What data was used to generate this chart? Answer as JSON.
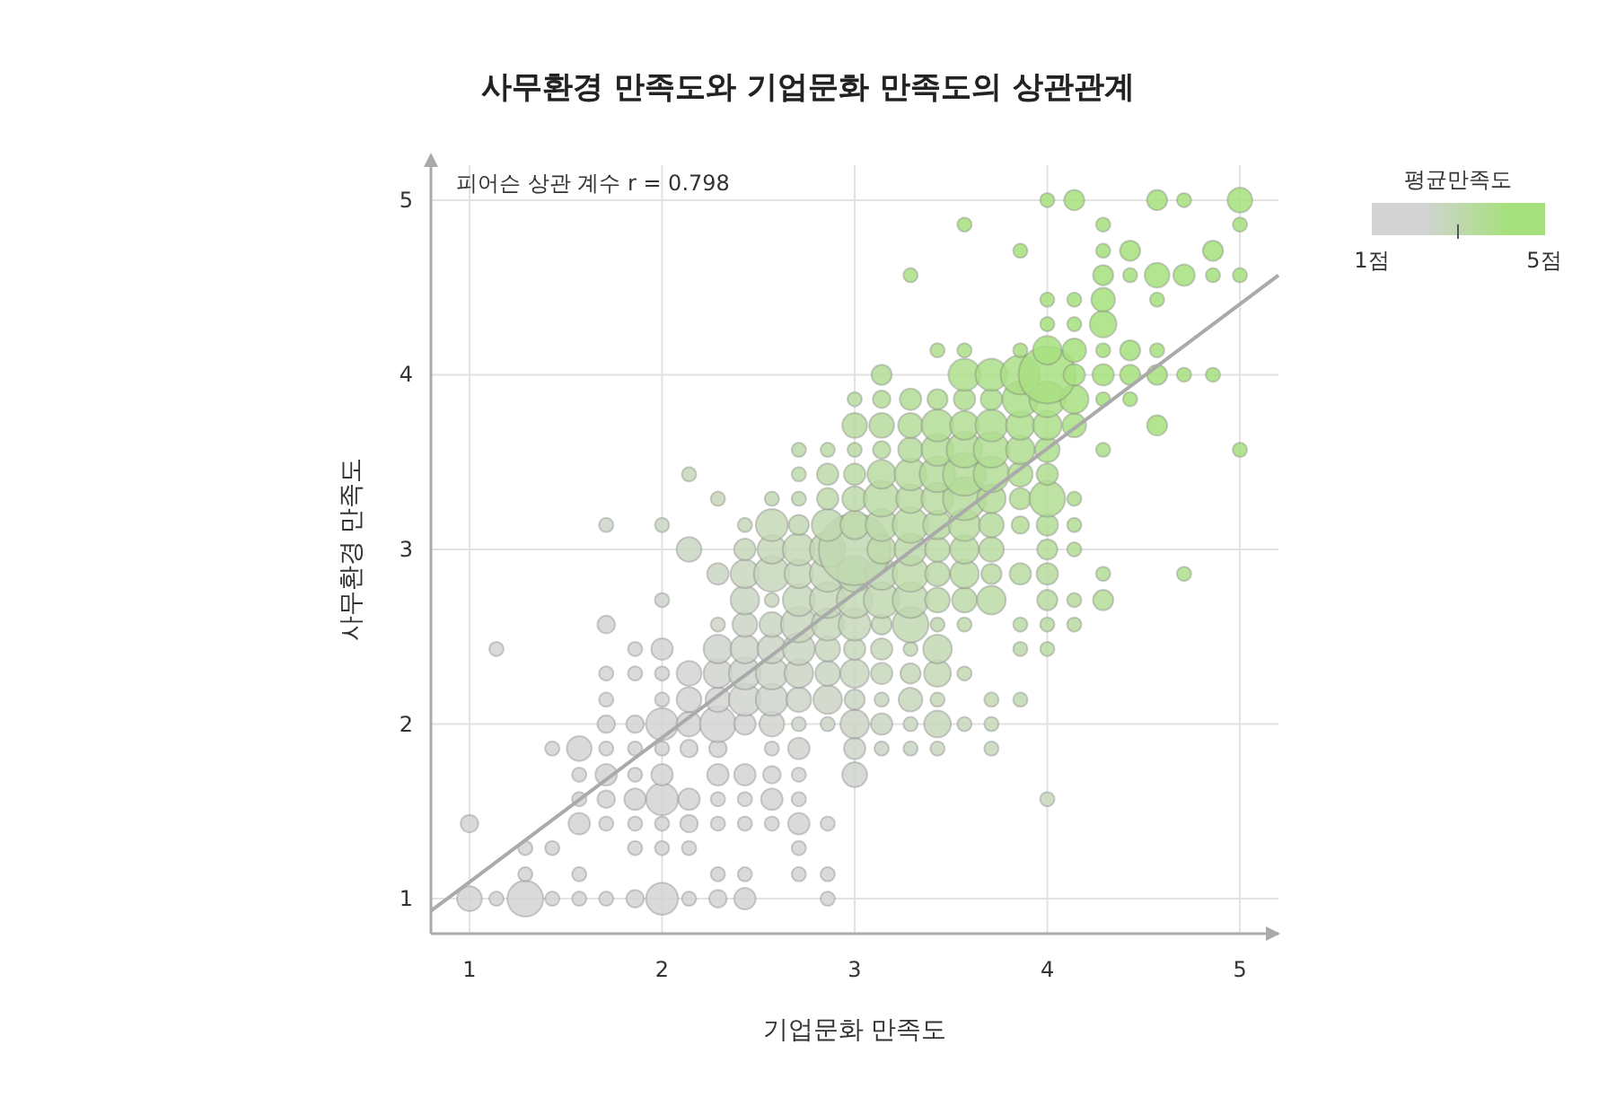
{
  "chart_data": {
    "type": "bubble",
    "title": "사무환경 만족도와 기업문화 만족도의 상관관계",
    "xlabel": "기업문화 만족도",
    "ylabel": "사무환경 만족도",
    "clabel": "평균만족도",
    "annotations": [
      "피어슨 상관 계수 r = 0.798"
    ],
    "xlim": [
      0.8,
      5.2
    ],
    "ylim": [
      0.8,
      5.2
    ],
    "xticks": [
      1,
      2,
      3,
      4,
      5
    ],
    "yticks": [
      1,
      2,
      3,
      4,
      5
    ],
    "grid": true,
    "clim": [
      1,
      5
    ],
    "cticks": [
      {
        "value": 1,
        "label": "1점"
      },
      {
        "value": 3,
        "label": null
      },
      {
        "value": 5,
        "label": "5점"
      }
    ],
    "series": [
      {
        "x": [
          1,
          1.14,
          1.29,
          1.43,
          1.57,
          1.71,
          1.86,
          2,
          2.14,
          2.29,
          2.43,
          2.86
        ],
        "values": [
          1,
          1,
          1,
          1,
          1,
          1,
          1,
          1,
          1,
          1,
          1,
          1
        ],
        "sizes": [
          0.12,
          0.04,
          0.25,
          0.04,
          0.04,
          0.04,
          0.06,
          0.2,
          0.04,
          0.06,
          0.09,
          0.04
        ],
        "colors": [
          "#d3d3d3",
          "#d3d3d3",
          "#d3d3d3",
          "#d3d3d3",
          "#d3d3d3",
          "#d3d3d3",
          "#d3d3d3",
          "#d3d3d3",
          "#d3d3d3",
          "#d3d3d3",
          "#d3d3d3",
          "#d3d3d3"
        ]
      },
      {
        "x": [
          1.29,
          1.57,
          2.29,
          2.43,
          2.71,
          2.86
        ],
        "values": [
          1.14,
          1.14,
          1.14,
          1.14,
          1.14,
          1.14
        ],
        "sizes": [
          0.04,
          0.04,
          0.04,
          0.04,
          0.04,
          0.04
        ],
        "colors": [
          "#d3d3d3",
          "#d3d3d3",
          "#d3d3d3",
          "#d3d3d3",
          "#d3d3d3",
          "#d3d3d3"
        ]
      },
      {
        "x": [
          1.29,
          1.43,
          1.86,
          2,
          2.14,
          2.71
        ],
        "values": [
          1.29,
          1.29,
          1.29,
          1.29,
          1.29,
          1.29
        ],
        "sizes": [
          0.04,
          0.04,
          0.04,
          0.04,
          0.04,
          0.04
        ],
        "colors": [
          "#d3d3d3",
          "#d3d3d3",
          "#d3d3d3",
          "#d3d3d3",
          "#d3d3d3",
          "#d3d3d3"
        ]
      },
      {
        "x": [
          1,
          1.57,
          1.71,
          1.86,
          2,
          2.14,
          2.29,
          2.43,
          2.57,
          2.71,
          2.86
        ],
        "values": [
          1.43,
          1.43,
          1.43,
          1.43,
          1.43,
          1.43,
          1.43,
          1.43,
          1.43,
          1.43,
          1.43
        ],
        "sizes": [
          0.06,
          0.09,
          0.04,
          0.04,
          0.04,
          0.06,
          0.04,
          0.04,
          0.04,
          0.09,
          0.04
        ],
        "colors": [
          "#d3d3d3",
          "#d3d3d3",
          "#d3d3d3",
          "#d3d3d3",
          "#d3d3d3",
          "#d3d3d3",
          "#d3d3d3",
          "#d3d3d3",
          "#d3d3d3",
          "#d3d3d3",
          "#d3d3d3"
        ]
      },
      {
        "x": [
          1.57,
          1.71,
          1.86,
          2,
          2.14,
          2.29,
          2.43,
          2.57,
          2.71,
          4
        ],
        "values": [
          1.57,
          1.57,
          1.57,
          1.57,
          1.57,
          1.57,
          1.57,
          1.57,
          1.57,
          1.57
        ],
        "sizes": [
          0.04,
          0.06,
          0.09,
          0.2,
          0.09,
          0.04,
          0.04,
          0.09,
          0.04,
          0.04
        ],
        "colors": [
          "#d3d3d3",
          "#d3d3d3",
          "#d3d3d3",
          "#d3d3d3",
          "#d3d3d3",
          "#d3d3d3",
          "#d3d3d3",
          "#d3d3d3",
          "#d3d3d3",
          "#c5d7b9"
        ]
      },
      {
        "x": [
          1.57,
          1.71,
          1.86,
          2,
          2.29,
          2.43,
          2.57,
          2.71,
          3
        ],
        "values": [
          1.71,
          1.71,
          1.71,
          1.71,
          1.71,
          1.71,
          1.71,
          1.71,
          1.71
        ],
        "sizes": [
          0.04,
          0.09,
          0.04,
          0.09,
          0.09,
          0.09,
          0.06,
          0.04,
          0.12
        ],
        "colors": [
          "#d3d3d3",
          "#d3d3d3",
          "#d3d3d3",
          "#d3d3d3",
          "#d3d3d3",
          "#d3d3d3",
          "#d3d3d3",
          "#d3d3d2",
          "#cfd4cc"
        ]
      },
      {
        "x": [
          1.43,
          1.57,
          1.71,
          1.86,
          2,
          2.14,
          2.29,
          2.57,
          2.71,
          3,
          3.14,
          3.29,
          3.43,
          3.71
        ],
        "values": [
          1.86,
          1.86,
          1.86,
          1.86,
          1.86,
          1.86,
          1.86,
          1.86,
          1.86,
          1.86,
          1.86,
          1.86,
          1.86,
          1.86
        ],
        "sizes": [
          0.04,
          0.12,
          0.04,
          0.04,
          0.04,
          0.06,
          0.06,
          0.04,
          0.09,
          0.09,
          0.04,
          0.04,
          0.04,
          0.04
        ],
        "colors": [
          "#d3d3d3",
          "#d3d3d3",
          "#d3d3d3",
          "#d3d3d3",
          "#d3d3d3",
          "#d3d3d3",
          "#d3d3d3",
          "#d3d3d2",
          "#d1d4cf",
          "#ced5c9",
          "#ccd5c6",
          "#cad6c3",
          "#c9d6bf",
          "#c5d7b9"
        ]
      },
      {
        "x": [
          1.71,
          1.86,
          2,
          2.14,
          2.29,
          2.43,
          2.57,
          2.71,
          2.86,
          3,
          3.14,
          3.29,
          3.43,
          3.57,
          3.71
        ],
        "values": [
          2,
          2,
          2,
          2,
          2,
          2,
          2,
          2,
          2,
          2,
          2,
          2,
          2,
          2,
          2
        ],
        "sizes": [
          0.06,
          0.06,
          0.2,
          0.12,
          0.25,
          0.09,
          0.12,
          0.04,
          0.04,
          0.16,
          0.09,
          0.04,
          0.14,
          0.04,
          0.04
        ],
        "colors": [
          "#d3d3d3",
          "#d3d3d3",
          "#d3d3d3",
          "#d3d3d3",
          "#d3d3d3",
          "#d3d3d2",
          "#d1d4cf",
          "#cfd4cc",
          "#ced5c9",
          "#ccd5c6",
          "#cad6c3",
          "#c9d6bf",
          "#c7d7bc",
          "#c5d7b9",
          "#c4d8b6"
        ]
      },
      {
        "x": [
          1.71,
          2,
          2.14,
          2.29,
          2.43,
          2.57,
          2.71,
          2.86,
          3,
          3.14,
          3.29,
          3.43,
          3.71,
          3.86
        ],
        "values": [
          2.14,
          2.14,
          2.14,
          2.14,
          2.14,
          2.14,
          2.14,
          2.14,
          2.14,
          2.14,
          2.14,
          2.14,
          2.14,
          2.14
        ],
        "sizes": [
          0.04,
          0.04,
          0.12,
          0.12,
          0.2,
          0.2,
          0.12,
          0.16,
          0.08,
          0.04,
          0.11,
          0.04,
          0.04,
          0.04
        ],
        "colors": [
          "#d3d3d3",
          "#d3d3d3",
          "#d3d3d3",
          "#d3d3d2",
          "#d1d4cf",
          "#cfd4cc",
          "#ced5c9",
          "#ccd5c6",
          "#cad6c3",
          "#c9d6bf",
          "#c7d7bc",
          "#c5d7b9",
          "#c2d8b3",
          "#c0d8b0"
        ]
      },
      {
        "x": [
          1.71,
          1.86,
          2,
          2.14,
          2.29,
          2.43,
          2.57,
          2.71,
          2.86,
          3,
          3.14,
          3.29,
          3.43,
          3.57
        ],
        "values": [
          2.29,
          2.29,
          2.29,
          2.29,
          2.29,
          2.29,
          2.29,
          2.29,
          2.29,
          2.29,
          2.29,
          2.29,
          2.29,
          2.29
        ],
        "sizes": [
          0.04,
          0.04,
          0.04,
          0.12,
          0.16,
          0.2,
          0.2,
          0.16,
          0.12,
          0.16,
          0.09,
          0.08,
          0.14,
          0.04
        ],
        "colors": [
          "#d3d3d3",
          "#d3d3d3",
          "#d3d3d3",
          "#d3d3d2",
          "#d1d4cf",
          "#cfd4cc",
          "#ced5c9",
          "#ccd5c6",
          "#cad6c3",
          "#c9d6bf",
          "#c7d7bc",
          "#c5d7b9",
          "#c4d8b6",
          "#c2d8b3"
        ]
      },
      {
        "x": [
          1.14,
          1.86,
          2,
          2.29,
          2.43,
          2.57,
          2.71,
          2.86,
          3,
          3.14,
          3.29,
          3.43,
          3.86,
          4
        ],
        "values": [
          2.43,
          2.43,
          2.43,
          2.43,
          2.43,
          2.43,
          2.43,
          2.43,
          2.43,
          2.43,
          2.43,
          2.43,
          2.43,
          2.43
        ],
        "sizes": [
          0.04,
          0.04,
          0.09,
          0.16,
          0.16,
          0.16,
          0.2,
          0.12,
          0.09,
          0.09,
          0.04,
          0.16,
          0.04,
          0.04
        ],
        "colors": [
          "#d3d3d3",
          "#d3d3d3",
          "#d3d3d2",
          "#cfd4cc",
          "#ced5c9",
          "#ccd5c6",
          "#cad6c3",
          "#c9d6bf",
          "#c7d7bc",
          "#c5d7b9",
          "#c4d8b6",
          "#c2d8b3",
          "#bdd9a9",
          "#bbdaa6"
        ]
      },
      {
        "x": [
          1.71,
          2.29,
          2.43,
          2.57,
          2.71,
          2.86,
          3,
          3.14,
          3.29,
          3.43,
          3.57,
          3.86,
          4,
          4.14
        ],
        "values": [
          2.57,
          2.57,
          2.57,
          2.57,
          2.57,
          2.57,
          2.57,
          2.57,
          2.57,
          2.57,
          2.57,
          2.57,
          2.57,
          2.57
        ],
        "sizes": [
          0.06,
          0.04,
          0.12,
          0.12,
          0.25,
          0.2,
          0.2,
          0.08,
          0.25,
          0.04,
          0.04,
          0.04,
          0.04,
          0.04
        ],
        "colors": [
          "#d3d3d3",
          "#ced5c9",
          "#ccd5c6",
          "#cad6c3",
          "#c9d6bf",
          "#c7d7bc",
          "#c5d7b9",
          "#c4d8b6",
          "#c2d8b3",
          "#c0d8b0",
          "#bfd9ac",
          "#bbdaa6",
          "#badaa3",
          "#b8dba0"
        ]
      },
      {
        "x": [
          2,
          2.43,
          2.57,
          2.71,
          2.86,
          3,
          3.14,
          3.29,
          3.43,
          3.57,
          3.71,
          4,
          4.14,
          4.29
        ],
        "values": [
          2.71,
          2.71,
          2.71,
          2.71,
          2.71,
          2.71,
          2.71,
          2.71,
          2.71,
          2.71,
          2.71,
          2.71,
          2.71,
          2.71
        ],
        "sizes": [
          0.04,
          0.16,
          0.04,
          0.2,
          0.25,
          0.25,
          0.25,
          0.25,
          0.12,
          0.12,
          0.16,
          0.08,
          0.04,
          0.08
        ],
        "colors": [
          "#cfd4cc",
          "#cad6c3",
          "#c9d6bf",
          "#c7d7bc",
          "#c5d7b9",
          "#c4d8b6",
          "#c2d8b3",
          "#c0d8b0",
          "#bfd9ac",
          "#bdd9a9",
          "#bbdaa6",
          "#b8dba0",
          "#b6db9d",
          "#b5dc99"
        ]
      },
      {
        "x": [
          2.29,
          2.43,
          2.57,
          2.71,
          2.86,
          3,
          3.14,
          3.29,
          3.43,
          3.57,
          3.71,
          3.86,
          4,
          4.29,
          4.71
        ],
        "values": [
          2.86,
          2.86,
          2.86,
          2.86,
          2.86,
          2.86,
          2.86,
          2.86,
          2.86,
          2.86,
          2.86,
          2.86,
          2.86,
          2.86,
          2.86
        ],
        "sizes": [
          0.09,
          0.16,
          0.25,
          0.16,
          0.25,
          0.25,
          0.2,
          0.25,
          0.12,
          0.16,
          0.08,
          0.09,
          0.09,
          0.04,
          0.04
        ],
        "colors": [
          "#cad6c3",
          "#c9d6bf",
          "#c7d7bc",
          "#c5d7b9",
          "#c4d8b6",
          "#c2d8b3",
          "#c0d8b0",
          "#bfd9ac",
          "#bdd9a9",
          "#bbdaa6",
          "#badaa3",
          "#b8dba0",
          "#b6db9d",
          "#b3dc96",
          "#aede8d"
        ]
      },
      {
        "x": [
          2.14,
          2.43,
          2.57,
          2.71,
          2.86,
          3,
          3.14,
          3.29,
          3.43,
          3.57,
          3.71,
          4,
          4.14
        ],
        "values": [
          3,
          3,
          3,
          3,
          3,
          3,
          3,
          3,
          3,
          3,
          3,
          3,
          3
        ],
        "sizes": [
          0.12,
          0.09,
          0.16,
          0.2,
          0.25,
          1,
          0.16,
          0.2,
          0.12,
          0.16,
          0.12,
          0.08,
          0.04
        ],
        "colors": [
          "#cad6c3",
          "#c7d7bc",
          "#c5d7b9",
          "#c4d8b6",
          "#c2d8b3",
          "#c0d8b0",
          "#bfd9ac",
          "#bdd9a9",
          "#bbdaa6",
          "#badaa3",
          "#b8dba0",
          "#b5dc99",
          "#b3dc96"
        ]
      },
      {
        "x": [
          1.71,
          2,
          2.43,
          2.57,
          2.71,
          2.86,
          3,
          3.14,
          3.29,
          3.43,
          3.57,
          3.71,
          3.86,
          4,
          4.14
        ],
        "values": [
          3.14,
          3.14,
          3.14,
          3.14,
          3.14,
          3.14,
          3.14,
          3.14,
          3.14,
          3.14,
          3.14,
          3.14,
          3.14,
          3.14,
          3.14
        ],
        "sizes": [
          0.04,
          0.04,
          0.04,
          0.2,
          0.08,
          0.2,
          0.16,
          0.2,
          0.25,
          0.16,
          0.2,
          0.12,
          0.06,
          0.09,
          0.04
        ],
        "colors": [
          "#ced5c9",
          "#cad6c3",
          "#c5d7b9",
          "#c4d8b6",
          "#c2d8b3",
          "#c0d8b0",
          "#bfd9ac",
          "#bdd9a9",
          "#bbdaa6",
          "#badaa3",
          "#b8dba0",
          "#b6db9d",
          "#b5dc99",
          "#b3dc96",
          "#b1dd93"
        ]
      },
      {
        "x": [
          2.29,
          2.57,
          2.71,
          2.86,
          3,
          3.14,
          3.29,
          3.43,
          3.57,
          3.71,
          3.86,
          4,
          4.14
        ],
        "values": [
          3.29,
          3.29,
          3.29,
          3.29,
          3.29,
          3.29,
          3.29,
          3.29,
          3.29,
          3.29,
          3.29,
          3.29,
          3.29
        ],
        "sizes": [
          0.04,
          0.04,
          0.04,
          0.09,
          0.12,
          0.25,
          0.16,
          0.2,
          0.36,
          0.16,
          0.09,
          0.25,
          0.04
        ],
        "colors": [
          "#c5d7b9",
          "#c2d8b3",
          "#c0d8b0",
          "#bfd9ac",
          "#bdd9a9",
          "#bbdaa6",
          "#badaa3",
          "#b8dba0",
          "#b6db9d",
          "#b5dc99",
          "#b3dc96",
          "#b1dd93",
          "#b0dd90"
        ]
      },
      {
        "x": [
          2.14,
          2.71,
          2.86,
          3,
          3.14,
          3.29,
          3.43,
          3.57,
          3.71,
          3.86,
          4
        ],
        "values": [
          3.43,
          3.43,
          3.43,
          3.43,
          3.43,
          3.43,
          3.43,
          3.43,
          3.43,
          3.43,
          3.43
        ],
        "sizes": [
          0.04,
          0.04,
          0.09,
          0.09,
          0.16,
          0.2,
          0.25,
          0.36,
          0.25,
          0.12,
          0.09
        ],
        "colors": [
          "#c5d7b9",
          "#bfd9ac",
          "#bdd9a9",
          "#bbdaa6",
          "#badaa3",
          "#b8dba0",
          "#b6db9d",
          "#b5dc99",
          "#b3dc96",
          "#b1dd93",
          "#b0dd90"
        ]
      },
      {
        "x": [
          2.71,
          2.86,
          3,
          3.14,
          3.29,
          3.43,
          3.57,
          3.71,
          3.86,
          4,
          4.29,
          5
        ],
        "values": [
          3.57,
          3.57,
          3.57,
          3.57,
          3.57,
          3.57,
          3.57,
          3.57,
          3.57,
          3.57,
          3.57,
          3.57
        ],
        "sizes": [
          0.04,
          0.04,
          0.04,
          0.06,
          0.12,
          0.2,
          0.25,
          0.25,
          0.16,
          0.12,
          0.04,
          0.04
        ],
        "colors": [
          "#bdd9a9",
          "#bbdaa6",
          "#badaa3",
          "#b8dba0",
          "#b6db9d",
          "#b5dc99",
          "#b3dc96",
          "#b1dd93",
          "#b0dd90",
          "#aede8d",
          "#abdf86",
          "#a6e07e"
        ]
      },
      {
        "x": [
          3,
          3.14,
          3.29,
          3.43,
          3.57,
          3.71,
          3.86,
          4,
          4.14,
          4.57
        ],
        "values": [
          3.71,
          3.71,
          3.71,
          3.71,
          3.71,
          3.71,
          3.71,
          3.71,
          3.71,
          3.71
        ],
        "sizes": [
          0.12,
          0.12,
          0.12,
          0.2,
          0.16,
          0.2,
          0.16,
          0.16,
          0.11,
          0.08
        ],
        "colors": [
          "#b8dba0",
          "#b6db9d",
          "#b5dc99",
          "#b3dc96",
          "#b1dd93",
          "#b0dd90",
          "#aede8d",
          "#acde8a",
          "#abdf86",
          "#a6e07e"
        ]
      },
      {
        "x": [
          3,
          3.14,
          3.29,
          3.43,
          3.57,
          3.71,
          3.86,
          4,
          4.14,
          4.29,
          4.43
        ],
        "values": [
          3.86,
          3.86,
          3.86,
          3.86,
          3.86,
          3.86,
          3.86,
          3.86,
          3.86,
          3.86,
          3.86
        ],
        "sizes": [
          0.04,
          0.06,
          0.09,
          0.08,
          0.09,
          0.09,
          0.25,
          0.25,
          0.16,
          0.04,
          0.04
        ],
        "colors": [
          "#b6db9d",
          "#b5dc99",
          "#b3dc96",
          "#b1dd93",
          "#b0dd90",
          "#aede8d",
          "#acde8a",
          "#abdf86",
          "#a9df83",
          "#a7e080",
          "#a6e07e"
        ]
      },
      {
        "x": [
          3.14,
          3.57,
          3.71,
          3.86,
          4,
          4.14,
          4.29,
          4.43,
          4.57,
          4.71,
          4.86
        ],
        "values": [
          4,
          4,
          4,
          4,
          4,
          4,
          4,
          4,
          4,
          4,
          4
        ],
        "sizes": [
          0.08,
          0.2,
          0.2,
          0.3,
          0.64,
          0.09,
          0.09,
          0.08,
          0.08,
          0.04,
          0.04
        ],
        "colors": [
          "#b3dc96",
          "#aede8d",
          "#acde8a",
          "#abdf86",
          "#a9df83",
          "#a7e080",
          "#a6e07e",
          "#a6e07e",
          "#a6e07e",
          "#a6e07e",
          "#a6e07e"
        ]
      },
      {
        "x": [
          3.43,
          3.57,
          3.86,
          4,
          4.14,
          4.29,
          4.43,
          4.57
        ],
        "values": [
          4.14,
          4.14,
          4.14,
          4.14,
          4.14,
          4.14,
          4.14,
          4.14
        ],
        "sizes": [
          0.04,
          0.04,
          0.04,
          0.16,
          0.11,
          0.04,
          0.08,
          0.04
        ],
        "colors": [
          "#aede8d",
          "#acde8a",
          "#a9df83",
          "#a7e080",
          "#a6e07e",
          "#a6e07e",
          "#a6e07e",
          "#a6e07e"
        ]
      },
      {
        "x": [
          4,
          4.14,
          4.29
        ],
        "values": [
          4.29,
          4.29,
          4.29
        ],
        "sizes": [
          0.04,
          0.04,
          0.14
        ],
        "color": "#a6e07e"
      },
      {
        "x": [
          4,
          4.14,
          4.29,
          4.57
        ],
        "values": [
          4.43,
          4.43,
          4.43,
          4.43
        ],
        "sizes": [
          0.04,
          0.04,
          0.11,
          0.04
        ],
        "color": "#a6e07e"
      },
      {
        "x": [
          3.29,
          4.29,
          4.43,
          4.57,
          4.71,
          4.86,
          5
        ],
        "values": [
          4.57,
          4.57,
          4.57,
          4.57,
          4.57,
          4.57,
          4.57
        ],
        "sizes": [
          0.04,
          0.08,
          0.04,
          0.12,
          0.09,
          0.04,
          0.04
        ],
        "colors": [
          "#abdf86",
          "#a6e07e",
          "#a6e07e",
          "#a6e07e",
          "#a6e07e",
          "#a6e07e",
          "#a6e07e"
        ]
      },
      {
        "x": [
          3.86,
          4.29,
          4.43,
          4.86
        ],
        "values": [
          4.71,
          4.71,
          4.71,
          4.71
        ],
        "sizes": [
          0.04,
          0.04,
          0.08,
          0.08
        ],
        "color": "#a6e07e"
      },
      {
        "x": [
          3.57,
          4.29,
          5
        ],
        "values": [
          4.86,
          4.86,
          4.86
        ],
        "sizes": [
          0.04,
          0.04,
          0.04
        ],
        "color": "#a6e07e"
      },
      {
        "x": [
          4,
          4.14,
          4.57,
          4.71,
          5
        ],
        "values": [
          5,
          5,
          5,
          5,
          5
        ],
        "sizes": [
          0.04,
          0.08,
          0.08,
          0.04,
          0.12
        ],
        "color": "#a6e07e"
      },
      {
        "type": "line",
        "color": "#aaaaaa",
        "x": [
          0.8,
          5.2
        ],
        "values": [
          0.93,
          4.57
        ]
      }
    ]
  }
}
